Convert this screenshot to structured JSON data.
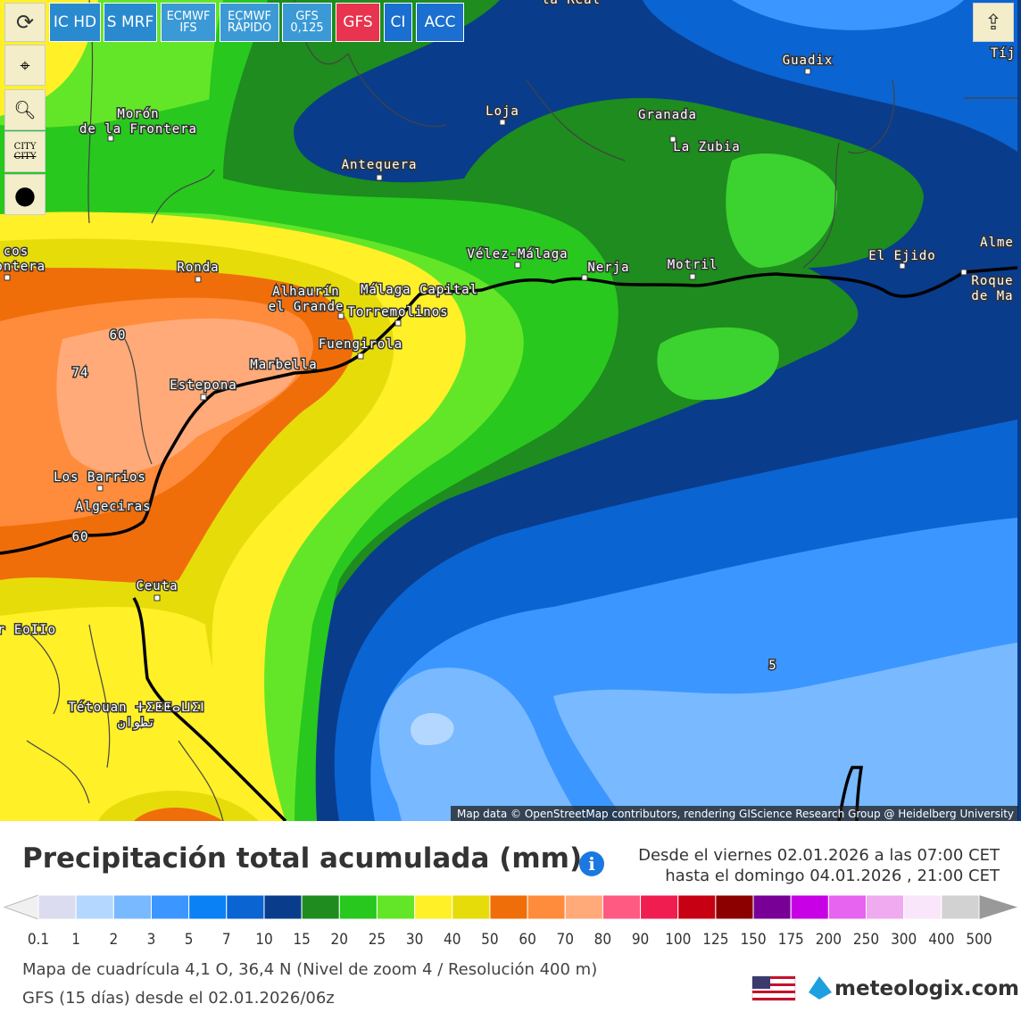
{
  "toolbar": {
    "buttons": [
      {
        "text": "IC HD",
        "color": "#2a8ad0"
      },
      {
        "text": "S MRF",
        "color": "#2a8ad0"
      },
      {
        "text": [
          "ECMWF",
          "IFS"
        ],
        "color": "#3b9ad6"
      },
      {
        "text": [
          "ECMWF",
          "RÁPIDO"
        ],
        "color": "#3b9ad6"
      },
      {
        "text": [
          "GFS",
          "0,125"
        ],
        "color": "#3b9ad6"
      },
      {
        "text": "GFS",
        "color": "#e8344e"
      },
      {
        "text": "CI",
        "color": "#1a6fd0"
      },
      {
        "text": "ACC",
        "color": "#1a6fd0"
      }
    ],
    "city_button": "CITY"
  },
  "map": {
    "places": [
      [
        "la Real"
      ],
      [
        "Guadix"
      ],
      [
        "Tíj"
      ],
      [
        "Morón",
        "de la Frontera"
      ],
      [
        "Loja"
      ],
      [
        "Granada"
      ],
      [
        "La Zubia"
      ],
      [
        "Antequera"
      ],
      [
        "Vélez-Málaga"
      ],
      [
        "Nerja"
      ],
      [
        "Motril"
      ],
      [
        "El Ejido"
      ],
      [
        "Alme"
      ],
      [
        "Roque",
        "de Ma"
      ],
      [
        "cos",
        "rontera"
      ],
      [
        "Ronda"
      ],
      [
        "Alhaurín",
        "el Grande"
      ],
      [
        "Málaga Capital"
      ],
      [
        "Torremolinos"
      ],
      [
        "Fuengirola"
      ],
      [
        "Marbella"
      ],
      [
        "Estepona"
      ],
      [
        "Los Barrios"
      ],
      [
        "Algeciras"
      ],
      [
        "Ceuta"
      ],
      [
        "r EoIIo"
      ],
      [
        "Tétouan ⵜⵉⵟⵟⴰⵡⵉⵏ",
        "تطوان"
      ]
    ],
    "contour_labels": [
      "60",
      "74",
      "60",
      "5"
    ],
    "attribution": "Map data © OpenStreetMap contributors, rendering GIScience Research Group @ Heidelberg University"
  },
  "legend": {
    "title": "Precipitación total acumulada (mm)",
    "period": [
      "Desde el viernes 02.01.2026 a  las 07:00  CET",
      "hasta el domingo 04.01.2026 ,  21:00  CET"
    ],
    "scale": [
      0.1,
      1,
      2,
      3,
      5,
      7,
      10,
      15,
      20,
      25,
      30,
      40,
      50,
      60,
      70,
      80,
      90,
      100,
      125,
      150,
      175,
      200,
      250,
      300,
      400,
      500
    ],
    "colors": [
      "#dcdcf0",
      "#b4d7ff",
      "#78b9ff",
      "#3c96ff",
      "#0a82f5",
      "#0a64d2",
      "#0a3c8c",
      "#1e8c1e",
      "#28c81e",
      "#64e628",
      "#fff028",
      "#e6dc0a",
      "#f06e0a",
      "#ff8c3c",
      "#ffaa78",
      "#ff5a82",
      "#f01e50",
      "#c80014",
      "#8c0000",
      "#780096",
      "#c800e6",
      "#e664f0",
      "#f0aaf0",
      "#fae6fa",
      "#d2d2d2"
    ],
    "below_color": "#f0f0f0",
    "above_color": "#999999"
  },
  "footer": {
    "lines": [
      "Mapa de cuadrícula 4,1 O, 36,4 N (Nivel de zoom 4 / Resolución 400 m)",
      "GFS (15 días) desde el 02.01.2026/06z"
    ],
    "brand": "meteologix.com"
  }
}
